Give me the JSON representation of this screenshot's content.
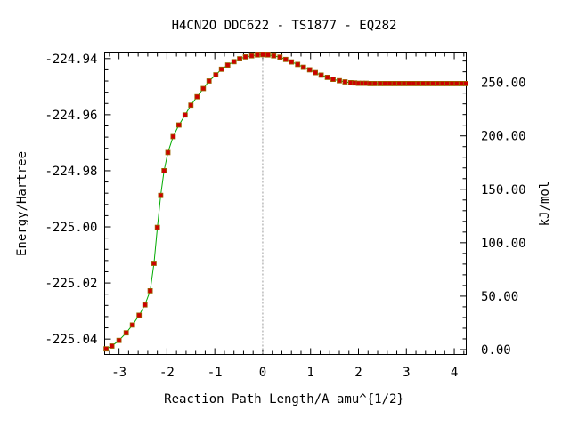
{
  "chart_data": {
    "type": "scatter",
    "title": "H4CN2O   DDC622 - TS1877 - EQ282",
    "xlabel": "Reaction Path Length/A amu^{1/2}",
    "ylabel": "Energy/Hartree",
    "y2label": "kJ/mol",
    "xlim": [
      -3.3,
      4.25
    ],
    "ylim": [
      -225.0455,
      -224.938
    ],
    "y2lim": [
      -4.6,
      277.6
    ],
    "x_ticks": [
      -3,
      -2,
      -1,
      0,
      1,
      2,
      3,
      4
    ],
    "x_tick_labels": [
      "-3",
      "-2",
      "-1",
      "0",
      "1",
      "2",
      "3",
      "4"
    ],
    "y_ticks": [
      -224.94,
      -224.96,
      -224.98,
      -225.0,
      -225.02,
      -225.04
    ],
    "y_tick_labels": [
      "-224.94",
      "-224.96",
      "-224.98",
      "-225.00",
      "-225.02",
      "-225.04"
    ],
    "y2_ticks": [
      0,
      50,
      100,
      150,
      200,
      250
    ],
    "y2_tick_labels": [
      "0.00",
      "50.00",
      "100.00",
      "150.00",
      "200.00",
      "250.00"
    ],
    "ts_marker_x": 0,
    "grid": false,
    "colors": {
      "line": "#00aa00",
      "marker": "#cc0000",
      "marker_edge": "#996600",
      "ts_line": "#999999"
    },
    "series": [
      {
        "x": [
          -3.27,
          -3.15,
          -3.0,
          -2.85,
          -2.72,
          -2.58,
          -2.46,
          -2.35,
          -2.27,
          -2.2,
          -2.13,
          -2.06,
          -1.98,
          -1.87,
          -1.75,
          -1.62,
          -1.5,
          -1.37,
          -1.24,
          -1.12,
          -0.98,
          -0.86,
          -0.73,
          -0.6,
          -0.48,
          -0.36,
          -0.23,
          -0.11,
          0.0,
          0.11,
          0.23,
          0.36,
          0.48,
          0.6,
          0.73,
          0.85,
          0.98,
          1.1,
          1.22,
          1.35,
          1.47,
          1.6,
          1.72,
          1.84,
          1.92,
          2.0,
          2.08,
          2.16,
          2.24,
          2.34,
          2.45,
          2.55,
          2.65,
          2.75,
          2.85,
          2.95,
          3.05,
          3.15,
          3.25,
          3.35,
          3.45,
          3.55,
          3.65,
          3.75,
          3.85,
          3.95,
          4.05,
          4.15,
          4.24
        ],
        "y": [
          -225.0435,
          -225.0425,
          -225.0405,
          -225.0378,
          -225.035,
          -225.0315,
          -225.0278,
          -225.0228,
          -225.013,
          -225.0002,
          -224.9888,
          -224.98,
          -224.9735,
          -224.9678,
          -224.9637,
          -224.9601,
          -224.9566,
          -224.9536,
          -224.9507,
          -224.948,
          -224.9458,
          -224.9438,
          -224.9423,
          -224.9411,
          -224.9401,
          -224.9394,
          -224.939,
          -224.9387,
          -224.9386,
          -224.9387,
          -224.939,
          -224.9395,
          -224.9403,
          -224.9412,
          -224.9421,
          -224.9431,
          -224.944,
          -224.945,
          -224.9459,
          -224.9467,
          -224.9474,
          -224.9479,
          -224.9483,
          -224.9486,
          -224.9487,
          -224.9488,
          -224.9488,
          -224.9488,
          -224.9489,
          -224.9489,
          -224.9489,
          -224.9489,
          -224.9489,
          -224.9489,
          -224.9489,
          -224.9489,
          -224.9489,
          -224.9489,
          -224.9489,
          -224.9489,
          -224.9489,
          -224.9489,
          -224.9489,
          -224.9489,
          -224.9489,
          -224.9489,
          -224.9489,
          -224.9489,
          -224.9489
        ]
      }
    ]
  }
}
